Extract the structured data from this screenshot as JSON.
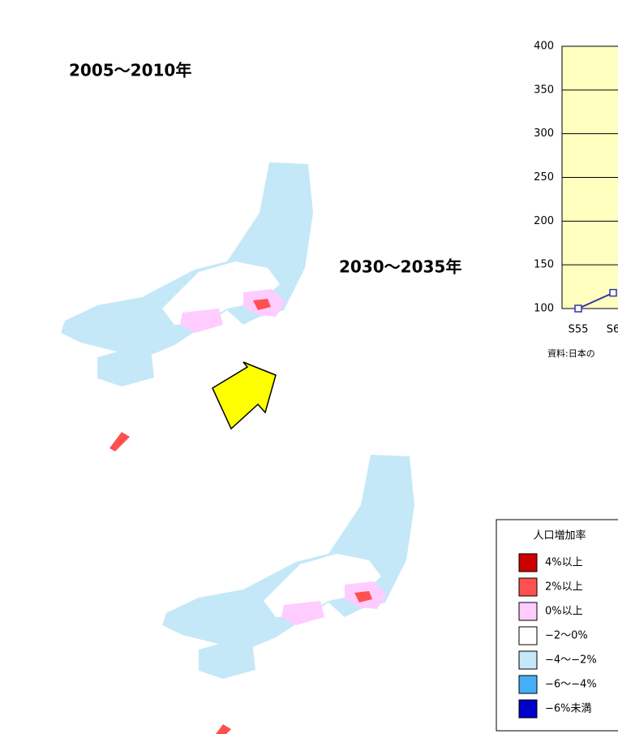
{
  "maps": [
    {
      "title": "2005～2010年"
    },
    {
      "title": "2030～2035年"
    }
  ],
  "legend": {
    "title": "人口増加率",
    "items": [
      {
        "label": "4%以上",
        "color": "#cc0000"
      },
      {
        "label": "2%以上",
        "color": "#ff5050"
      },
      {
        "label": "0%以上",
        "color": "#ffccff"
      },
      {
        "label": "−2〜0%",
        "color": "#ffffff"
      },
      {
        "label": "−4〜−2%",
        "color": "#c4e8f8"
      },
      {
        "label": "−6〜−4%",
        "color": "#44b0f8"
      },
      {
        "label": "−6%未満",
        "color": "#0000cc"
      }
    ]
  },
  "chart_data": {
    "type": "line",
    "categories": [
      "S55",
      "S6"
    ],
    "values": [
      100,
      118
    ],
    "color": "#3333aa",
    "ylim": [
      100,
      400
    ],
    "yticks": [
      100,
      150,
      200,
      250,
      300,
      350,
      400
    ],
    "grid": true,
    "background": "#ffffc0",
    "source": "資料:日本の"
  }
}
